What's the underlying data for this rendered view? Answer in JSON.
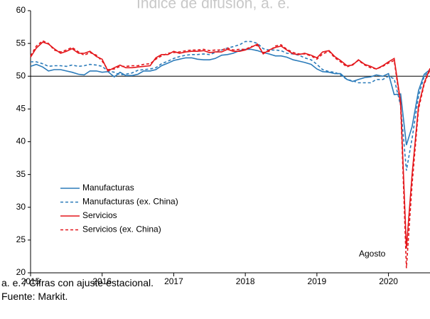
{
  "chart_data": {
    "type": "line",
    "title": "Índice de difusión, a. e.",
    "annotation": "Agosto",
    "footnotes": [
      "a. e. / Cifras con ajuste estacional.",
      "Fuente: Markit."
    ],
    "x": [
      2015,
      2015.08,
      2015.17,
      2015.25,
      2015.33,
      2015.42,
      2015.5,
      2015.58,
      2015.67,
      2015.75,
      2015.83,
      2015.92,
      2016,
      2016.08,
      2016.17,
      2016.25,
      2016.33,
      2016.42,
      2016.5,
      2016.58,
      2016.67,
      2016.75,
      2016.83,
      2016.92,
      2017,
      2017.08,
      2017.17,
      2017.25,
      2017.33,
      2017.42,
      2017.5,
      2017.58,
      2017.67,
      2017.75,
      2017.83,
      2017.92,
      2018,
      2018.08,
      2018.17,
      2018.25,
      2018.33,
      2018.42,
      2018.5,
      2018.58,
      2018.67,
      2018.75,
      2018.83,
      2018.92,
      2019,
      2019.08,
      2019.17,
      2019.25,
      2019.33,
      2019.42,
      2019.5,
      2019.58,
      2019.67,
      2019.75,
      2019.83,
      2019.92,
      2020,
      2020.08,
      2020.17,
      2020.25,
      2020.33,
      2020.42,
      2020.5,
      2020.58
    ],
    "series": [
      {
        "name": "Manufacturas",
        "color": "#2b7bba",
        "dash": false,
        "values": [
          51.5,
          51.8,
          51.4,
          50.8,
          51.0,
          51.0,
          50.8,
          50.6,
          50.3,
          50.2,
          50.8,
          50.8,
          50.6,
          50.7,
          49.9,
          50.6,
          50.1,
          50.1,
          50.3,
          50.8,
          50.8,
          51.0,
          51.6,
          52.0,
          52.4,
          52.6,
          52.8,
          52.8,
          52.6,
          52.5,
          52.5,
          52.7,
          53.2,
          53.3,
          53.5,
          53.9,
          54.1,
          54.1,
          53.9,
          53.6,
          53.4,
          53.1,
          53.1,
          52.9,
          52.5,
          52.3,
          52.1,
          51.8,
          51.1,
          50.7,
          50.6,
          50.4,
          50.4,
          49.5,
          49.2,
          49.5,
          49.8,
          49.9,
          50.2,
          50.0,
          50.4,
          47.2,
          47.3,
          39.5,
          42.3,
          47.8,
          50.3,
          51.0
        ]
      },
      {
        "name": "Manufacturas (ex. China)",
        "color": "#2b7bba",
        "dash": true,
        "values": [
          52.2,
          52.2,
          51.9,
          51.5,
          51.6,
          51.6,
          51.5,
          51.7,
          51.5,
          51.6,
          51.8,
          51.7,
          51.5,
          50.8,
          50.6,
          50.2,
          50.3,
          50.5,
          50.9,
          51.0,
          51.1,
          51.3,
          51.9,
          52.3,
          52.7,
          53.0,
          53.2,
          53.3,
          53.3,
          53.4,
          53.3,
          53.6,
          54.0,
          54.3,
          54.5,
          54.8,
          55.3,
          55.3,
          55.0,
          54.2,
          54.0,
          54.0,
          53.9,
          53.5,
          53.4,
          53.2,
          52.8,
          52.5,
          51.8,
          51.0,
          50.7,
          50.6,
          50.2,
          49.5,
          49.3,
          49.0,
          49.0,
          49.0,
          49.5,
          49.5,
          50.0,
          49.6,
          45.5,
          35.6,
          40.5,
          47.0,
          50.0,
          50.8
        ]
      },
      {
        "name": "Servicios",
        "color": "#e3161b",
        "dash": false,
        "values": [
          52.9,
          54.3,
          55.2,
          54.9,
          54.2,
          53.5,
          53.8,
          54.2,
          53.5,
          53.5,
          53.8,
          53.0,
          52.6,
          50.8,
          51.3,
          51.7,
          51.3,
          51.3,
          51.4,
          51.5,
          51.6,
          52.8,
          53.3,
          53.3,
          53.8,
          53.5,
          53.7,
          53.8,
          53.8,
          53.9,
          53.6,
          53.7,
          53.7,
          54.1,
          53.8,
          53.8,
          54.0,
          54.4,
          54.9,
          53.4,
          54.0,
          54.4,
          54.6,
          54.0,
          53.4,
          53.3,
          53.5,
          53.2,
          52.8,
          53.7,
          53.9,
          53.0,
          52.4,
          51.6,
          51.7,
          52.5,
          51.8,
          51.5,
          51.1,
          51.6,
          52.2,
          52.7,
          46.0,
          23.7,
          35.0,
          45.5,
          49.0,
          51.2
        ]
      },
      {
        "name": "Servicios (ex. China)",
        "color": "#e3161b",
        "dash": true,
        "values": [
          53.1,
          54.6,
          55.4,
          55.0,
          54.0,
          53.7,
          54.0,
          54.4,
          53.7,
          53.2,
          53.6,
          53.2,
          52.3,
          51.0,
          51.1,
          51.5,
          51.5,
          51.6,
          51.6,
          51.8,
          51.9,
          52.6,
          53.1,
          53.5,
          53.6,
          53.7,
          53.9,
          54.0,
          54.0,
          54.1,
          53.9,
          54.0,
          54.0,
          54.3,
          54.0,
          54.1,
          54.1,
          54.5,
          54.7,
          53.6,
          53.8,
          54.6,
          54.8,
          54.1,
          53.6,
          53.4,
          53.4,
          53.1,
          52.6,
          53.4,
          53.8,
          52.8,
          52.2,
          51.4,
          51.8,
          52.4,
          51.7,
          51.3,
          51.1,
          51.5,
          52.0,
          52.4,
          45.5,
          20.7,
          33.5,
          45.0,
          48.8,
          51.0
        ]
      }
    ],
    "xlim": [
      2015,
      2020.58
    ],
    "xticks": [
      2015,
      2016,
      2017,
      2018,
      2019,
      2020
    ],
    "ylim": [
      20,
      60
    ],
    "yticks": [
      20,
      25,
      30,
      35,
      40,
      45,
      50,
      55,
      60
    ],
    "hline": 50,
    "legend": "lower-left"
  }
}
